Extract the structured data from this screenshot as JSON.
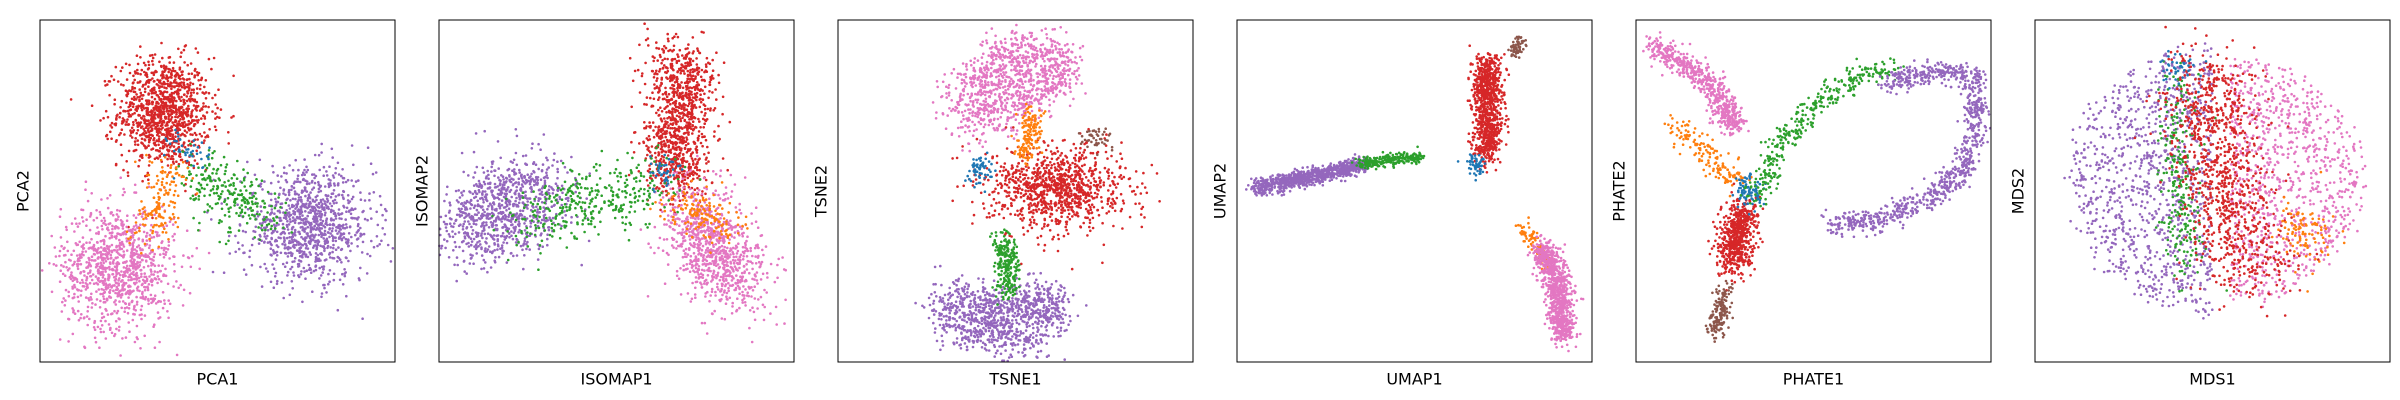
{
  "colors": {
    "blue": "#1f77b4",
    "orange": "#ff7f0e",
    "green": "#2ca02c",
    "red": "#d62728",
    "purple": "#9467bd",
    "brown": "#8c564b",
    "pink": "#e377c2"
  },
  "chart_data": [
    {
      "type": "scatter",
      "method": "PCA",
      "xlabel": "PCA1",
      "ylabel": "PCA2",
      "xlim": [
        0,
        100
      ],
      "ylim": [
        0,
        100
      ],
      "xticks": [],
      "yticks": [],
      "clusters": [
        {
          "color": "red",
          "n": 1100,
          "kind": "blob",
          "cx": 35,
          "cy": 73,
          "sx": 6.5,
          "sy": 8
        },
        {
          "color": "pink",
          "n": 1000,
          "kind": "blob",
          "cx": 22,
          "cy": 28,
          "sx": 8,
          "sy": 9
        },
        {
          "color": "purple",
          "n": 1000,
          "kind": "blob",
          "cx": 76,
          "cy": 40,
          "sx": 9,
          "sy": 8
        },
        {
          "color": "green",
          "n": 250,
          "kind": "path",
          "path": [
            [
              44,
              55
            ],
            [
              55,
              48
            ],
            [
              64,
              42
            ]
          ],
          "spread": 4
        },
        {
          "color": "orange",
          "n": 150,
          "kind": "path",
          "path": [
            [
              36,
              57
            ],
            [
              34,
              45
            ],
            [
              30,
              38
            ]
          ],
          "spread": 3.5
        },
        {
          "color": "blue",
          "n": 40,
          "kind": "blob",
          "cx": 42,
          "cy": 62,
          "sx": 3,
          "sy": 3
        }
      ]
    },
    {
      "type": "scatter",
      "method": "ISOMAP",
      "xlabel": "ISOMAP1",
      "ylabel": "ISOMAP2",
      "xlim": [
        0,
        100
      ],
      "ylim": [
        0,
        100
      ],
      "xticks": [],
      "yticks": [],
      "clusters": [
        {
          "color": "red",
          "n": 1000,
          "kind": "path",
          "path": [
            [
              68,
              52
            ],
            [
              66,
              65
            ],
            [
              70,
              78
            ],
            [
              66,
              90
            ]
          ],
          "spread": 4.5
        },
        {
          "color": "pink",
          "n": 900,
          "kind": "path",
          "path": [
            [
              72,
              45
            ],
            [
              78,
              32
            ],
            [
              85,
              22
            ]
          ],
          "spread": 6
        },
        {
          "color": "purple",
          "n": 900,
          "kind": "path",
          "path": [
            [
              8,
              38
            ],
            [
              18,
              45
            ],
            [
              30,
              50
            ]
          ],
          "spread": 6.5
        },
        {
          "color": "green",
          "n": 350,
          "kind": "path",
          "path": [
            [
              25,
              40
            ],
            [
              40,
              48
            ],
            [
              55,
              50
            ],
            [
              62,
              52
            ]
          ],
          "spread": 5
        },
        {
          "color": "orange",
          "n": 150,
          "kind": "path",
          "path": [
            [
              66,
              48
            ],
            [
              76,
              42
            ],
            [
              82,
              38
            ]
          ],
          "spread": 3.5
        },
        {
          "color": "blue",
          "n": 40,
          "kind": "blob",
          "cx": 63,
          "cy": 56,
          "sx": 2.5,
          "sy": 2.5
        }
      ]
    },
    {
      "type": "scatter",
      "method": "TSNE",
      "xlabel": "TSNE1",
      "ylabel": "TSNE2",
      "xlim": [
        0,
        100
      ],
      "ylim": [
        0,
        100
      ],
      "xticks": [],
      "yticks": [],
      "clusters": [
        {
          "color": "pink",
          "n": 1000,
          "kind": "path",
          "path": [
            [
              35,
              72
            ],
            [
              40,
              83
            ],
            [
              50,
              91
            ],
            [
              62,
              89
            ],
            [
              60,
              80
            ],
            [
              50,
              78
            ],
            [
              40,
              70
            ]
          ],
          "spread": 4
        },
        {
          "color": "red",
          "n": 1000,
          "kind": "blob",
          "cx": 62,
          "cy": 51,
          "sx": 9.5,
          "sy": 6
        },
        {
          "color": "purple",
          "n": 1000,
          "kind": "path",
          "path": [
            [
              29,
              18
            ],
            [
              35,
              10
            ],
            [
              48,
              7
            ],
            [
              58,
              10
            ],
            [
              60,
              18
            ],
            [
              52,
              16
            ],
            [
              42,
              16
            ],
            [
              33,
              19
            ]
          ],
          "spread": 3.5
        },
        {
          "color": "green",
          "n": 250,
          "kind": "path",
          "path": [
            [
              46,
              36
            ],
            [
              48,
              28
            ],
            [
              48,
              20
            ]
          ],
          "spread": 1.8
        },
        {
          "color": "orange",
          "n": 150,
          "kind": "path",
          "path": [
            [
              52,
              60
            ],
            [
              54,
              66
            ],
            [
              55,
              73
            ]
          ],
          "spread": 1.6
        },
        {
          "color": "blue",
          "n": 60,
          "kind": "blob",
          "cx": 40,
          "cy": 56,
          "sx": 1.8,
          "sy": 2
        },
        {
          "color": "brown",
          "n": 45,
          "kind": "blob",
          "cx": 73,
          "cy": 65,
          "sx": 2,
          "sy": 1.8
        }
      ]
    },
    {
      "type": "scatter",
      "method": "UMAP",
      "xlabel": "UMAP1",
      "ylabel": "UMAP2",
      "xlim": [
        0,
        100
      ],
      "ylim": [
        0,
        100
      ],
      "xticks": [],
      "yticks": [],
      "clusters": [
        {
          "color": "purple",
          "n": 900,
          "kind": "path",
          "path": [
            [
              5,
              51
            ],
            [
              15,
              53
            ],
            [
              25,
              55
            ],
            [
              36,
              58
            ]
          ],
          "spread": 1.2
        },
        {
          "color": "green",
          "n": 250,
          "kind": "path",
          "path": [
            [
              34,
              58
            ],
            [
              42,
              59
            ],
            [
              52,
              60
            ]
          ],
          "spread": 0.9
        },
        {
          "color": "red",
          "n": 900,
          "kind": "path",
          "path": [
            [
              70,
              60
            ],
            [
              71,
              70
            ],
            [
              70,
              80
            ],
            [
              71,
              88
            ]
          ],
          "spread": 2
        },
        {
          "color": "brown",
          "n": 60,
          "kind": "path",
          "path": [
            [
              78,
              90
            ],
            [
              80,
              94
            ]
          ],
          "spread": 1.2
        },
        {
          "color": "blue",
          "n": 50,
          "kind": "blob",
          "cx": 67,
          "cy": 58,
          "sx": 1.3,
          "sy": 1.8
        },
        {
          "color": "orange",
          "n": 90,
          "kind": "path",
          "path": [
            [
              80,
              40
            ],
            [
              84,
              34
            ],
            [
              88,
              28
            ]
          ],
          "spread": 1
        },
        {
          "color": "pink",
          "n": 900,
          "kind": "path",
          "path": [
            [
              86,
              34
            ],
            [
              90,
              25
            ],
            [
              91,
              15
            ],
            [
              92,
              8
            ]
          ],
          "spread": 1.8
        }
      ]
    },
    {
      "type": "scatter",
      "method": "PHATE",
      "xlabel": "PHATE1",
      "ylabel": "PHATE2",
      "xlim": [
        0,
        100
      ],
      "ylim": [
        0,
        100
      ],
      "xticks": [],
      "yticks": [],
      "clusters": [
        {
          "color": "pink",
          "n": 600,
          "kind": "path",
          "path": [
            [
              5,
              93
            ],
            [
              8,
              90
            ],
            [
              15,
              86
            ],
            [
              22,
              80
            ],
            [
              28,
              70
            ],
            [
              24,
              72
            ]
          ],
          "spread": 1.8
        },
        {
          "color": "orange",
          "n": 150,
          "kind": "path",
          "path": [
            [
              10,
              70
            ],
            [
              20,
              60
            ],
            [
              30,
              52
            ]
          ],
          "spread": 2
        },
        {
          "color": "red",
          "n": 600,
          "kind": "path",
          "path": [
            [
              30,
              45
            ],
            [
              28,
              35
            ],
            [
              27,
              28
            ]
          ],
          "spread": 2.5
        },
        {
          "color": "brown",
          "n": 150,
          "kind": "path",
          "path": [
            [
              25,
              22
            ],
            [
              24,
              14
            ],
            [
              22,
              8
            ]
          ],
          "spread": 1.5
        },
        {
          "color": "blue",
          "n": 80,
          "kind": "blob",
          "cx": 32,
          "cy": 50,
          "sx": 2,
          "sy": 2.5
        },
        {
          "color": "green",
          "n": 350,
          "kind": "path",
          "path": [
            [
              34,
              48
            ],
            [
              40,
              62
            ],
            [
              50,
              75
            ],
            [
              62,
              83
            ],
            [
              73,
              85
            ]
          ],
          "spread": 2
        },
        {
          "color": "purple",
          "n": 900,
          "kind": "path",
          "path": [
            [
              70,
              82
            ],
            [
              85,
              85
            ],
            [
              95,
              84
            ],
            [
              96,
              70
            ],
            [
              92,
              55
            ],
            [
              82,
              48
            ],
            [
              70,
              42
            ],
            [
              55,
              40
            ]
          ],
          "spread": 1.8
        }
      ]
    },
    {
      "type": "scatter",
      "method": "MDS",
      "xlabel": "MDS1",
      "ylabel": "MDS2",
      "xlim": [
        0,
        100
      ],
      "ylim": [
        0,
        100
      ],
      "xticks": [],
      "yticks": [],
      "clusters": [
        {
          "color": "purple",
          "n": 1000,
          "kind": "halfdisk",
          "cx": 50,
          "cy": 53,
          "r": 44,
          "side": "left"
        },
        {
          "color": "green",
          "n": 250,
          "kind": "path",
          "path": [
            [
              40,
              85
            ],
            [
              40,
              60
            ],
            [
              42,
              35
            ],
            [
              44,
              25
            ]
          ],
          "spread": 3
        },
        {
          "color": "pink",
          "n": 900,
          "kind": "halfdisk",
          "cx": 55,
          "cy": 53,
          "r": 40,
          "side": "right"
        },
        {
          "color": "red",
          "n": 1000,
          "kind": "path",
          "path": [
            [
              48,
              85
            ],
            [
              50,
              70
            ],
            [
              52,
              55
            ],
            [
              58,
              40
            ],
            [
              60,
              30
            ],
            [
              62,
              25
            ]
          ],
          "spread": 6.5
        },
        {
          "color": "blue",
          "n": 40,
          "kind": "blob",
          "cx": 40,
          "cy": 85,
          "sx": 2.5,
          "sy": 2.5
        },
        {
          "color": "orange",
          "n": 100,
          "kind": "blob",
          "cx": 76,
          "cy": 38,
          "sx": 4,
          "sy": 5
        }
      ]
    }
  ]
}
